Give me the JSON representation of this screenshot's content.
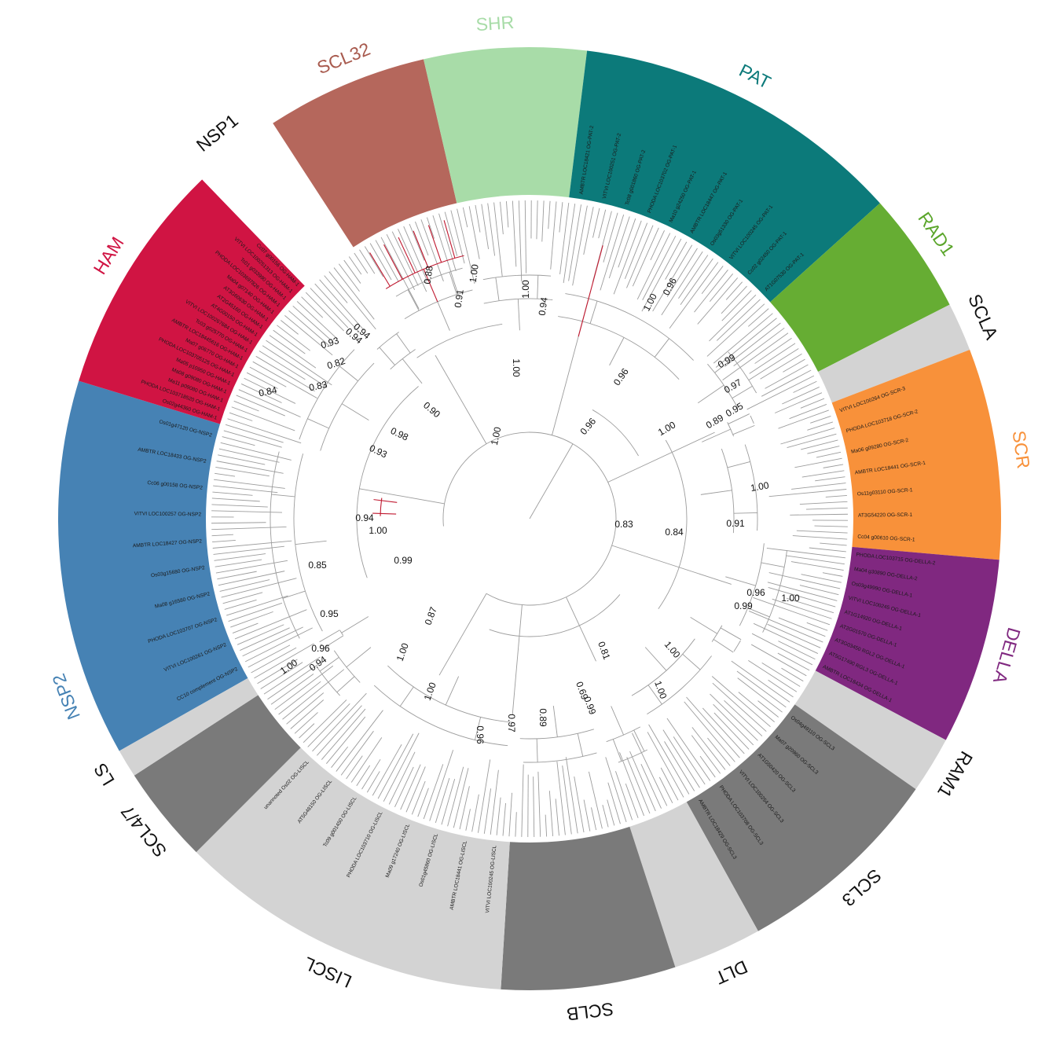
{
  "clades": [
    {
      "name": "NSP2",
      "color": "#4682b4",
      "label_color": "#4682b4"
    },
    {
      "name": "HAM",
      "color": "#d01443",
      "label_color": "#d01443"
    },
    {
      "name": "NSP1",
      "color": "#ffffff",
      "label_color": "#111111"
    },
    {
      "name": "SCL32",
      "color": "#b5675c",
      "label_color": "#a85a4e"
    },
    {
      "name": "SHR",
      "color": "#a8dca8",
      "label_color": "#a8dca8"
    },
    {
      "name": "PAT",
      "color": "#0c7a7a",
      "label_color": "#0c7a7a"
    },
    {
      "name": "RAD1",
      "color": "#66ad33",
      "label_color": "#5aa52a"
    },
    {
      "name": "SCLA",
      "color": "#d3d3d3",
      "label_color": "#111111"
    },
    {
      "name": "SCR",
      "color": "#f8913a",
      "label_color": "#f8913a"
    },
    {
      "name": "DELLA",
      "color": "#802880",
      "label_color": "#802880"
    },
    {
      "name": "RAM1",
      "color": "#d3d3d3",
      "label_color": "#111111"
    },
    {
      "name": "SCL3",
      "color": "#7a7a7a",
      "label_color": "#111111"
    },
    {
      "name": "DLT",
      "color": "#d3d3d3",
      "label_color": "#111111"
    },
    {
      "name": "SCLB",
      "color": "#7a7a7a",
      "label_color": "#111111"
    },
    {
      "name": "LISCL",
      "color": "#d3d3d3",
      "label_color": "#111111"
    },
    {
      "name": "SCL4/7",
      "color": "#7a7a7a",
      "label_color": "#111111"
    },
    {
      "name": "LS",
      "color": "#d3d3d3",
      "label_color": "#111111"
    }
  ],
  "support_values": [
    "0.88",
    "1.00",
    "0.91",
    "1.00",
    "0.94",
    "0.96",
    "1.00",
    "0.96",
    "0.94",
    "0.93",
    "0.82",
    "0.94",
    "0.83",
    "0.84",
    "0.90",
    "0.98",
    "0.93",
    "1.00",
    "1.00",
    "0.96",
    "0.99",
    "0.97",
    "0.95",
    "0.89",
    "1.00",
    "1.00",
    "0.83",
    "0.84",
    "0.91",
    "0.96",
    "1.00",
    "0.99",
    "0.94",
    "1.00",
    "0.85",
    "0.95",
    "0.99",
    "0.96",
    "1.00",
    "0.94",
    "0.87",
    "1.00",
    "1.00",
    "0.81",
    "1.00",
    "0.69",
    "0.99",
    "1.00",
    "0.89",
    "0.97",
    "0.96"
  ],
  "leaf_labels": {
    "HAM": [
      "Os02g44360 OG-HAM-1",
      "PHODA LOC103718520 OG-HAM-1",
      "Ma11 p09080 OG-HAM-1",
      "Ma08 g09080 OG-HAM-1",
      "Ma05 p10950 OG-HAM-1",
      "PHODA LOC103705125 OG-HAM-1",
      "Ma07 g06770 OG-HAM-1",
      "AMBTR LOC18445616 OG-HAM-1",
      "Tc03 g025770 OG-HAM-1",
      "VITVI LOC100267684 OG-HAM-1",
      "AT4G00150 OG-HAM-1",
      "AT2G45160 OG-HAM-1",
      "AT3G60630 OG-HAM-1",
      "Ma04 g07140 OG-HAM-1",
      "PHODA LOC103697826 OG-HAM-1",
      "Tc01 g033990 OG-HAM-1",
      "VITVI LOC100251313 OG-HAM-1",
      "Cc07 g00156 OG-HAM-1"
    ],
    "NSP2": [
      "CC10 complement OG-NSP2",
      "VITVI LOC100261 OG-NSP2",
      "PHODA LOC103707 OG-NSP2",
      "Ma08 g16580 OG-NSP2",
      "Os03g15680 OG-NSP2",
      "AMBTR LOC18427 OG-NSP2",
      "VITVI LOC100257 OG-NSP2",
      "Cc06 g00158 OG-NSP2",
      "AMBTR LOC18433 OG-NSP2",
      "Os01g47120 OG-NSP2"
    ],
    "PAT": [
      "AMBTR LOC18421 OG-PAT-2",
      "VITVI LOC100251 OG-PAT-2",
      "Tc08 g001860 OG-PAT-2",
      "PHODA LOC103702 OG-PAT-1",
      "Ma10 g24250 OG-PAT-1",
      "AMBTR LOC18447 OG-PAT-1",
      "Os03g51330 OG-PAT-1",
      "VITVI LOC100245 OG-PAT-1",
      "Cc02 g02450 OG-PAT-1",
      "AT1G07530 OG-PAT-1"
    ],
    "DELLA": [
      "PHODA LOC103715 OG-DELLA-2",
      "Ma04 g30890 OG-DELLA-2",
      "Os03g49990 OG-DELLA-1",
      "VITVI LOC100245 OG-DELLA-1",
      "AT1G14920 OG-DELLA-1",
      "AT2G01570 OG-DELLA-1",
      "AT3G03450 RGL2 OG-DELLA-1",
      "AT5G17490 RGL3 OG-DELLA-1",
      "AMBTR LOC18434 OG-DELLA-1"
    ],
    "SCR": [
      "VITVI LOC100264 OG-SCR-3",
      "PHODA LOC103718 OG-SCR-2",
      "Ma06 g09280 OG-SCR-2",
      "AMBTR LOC18441 OG-SCR-1",
      "Os11g03110 OG-SCR-1",
      "AT3G54220 OG-SCR-1",
      "Cc04 g00610 OG-SCR-1"
    ],
    "SCL3": [
      "Os04g49110 OG-SCL3",
      "Ma07 g20960 OG-SCL3",
      "AT1G50420 OG-SCL3",
      "VITVI LOC100254 OG-SCL3",
      "PHODA LOC103708 OG-SCL3",
      "AMBTR LOC18429 OG-SCL3"
    ],
    "LISCL": [
      "VITVI LOC100245 OG-LISCL",
      "AMBTR LOC18441 OG-LISCL",
      "Os01g45860 OG-LISCL",
      "Ma09 g17240 OG-LISCL",
      "PHODA LOC103710 OG-LISCL",
      "Tc09 g001450 OG-LISCL",
      "AT5G48150 OG-LISCL",
      "unannoted Os02 OG-LISCL"
    ]
  }
}
